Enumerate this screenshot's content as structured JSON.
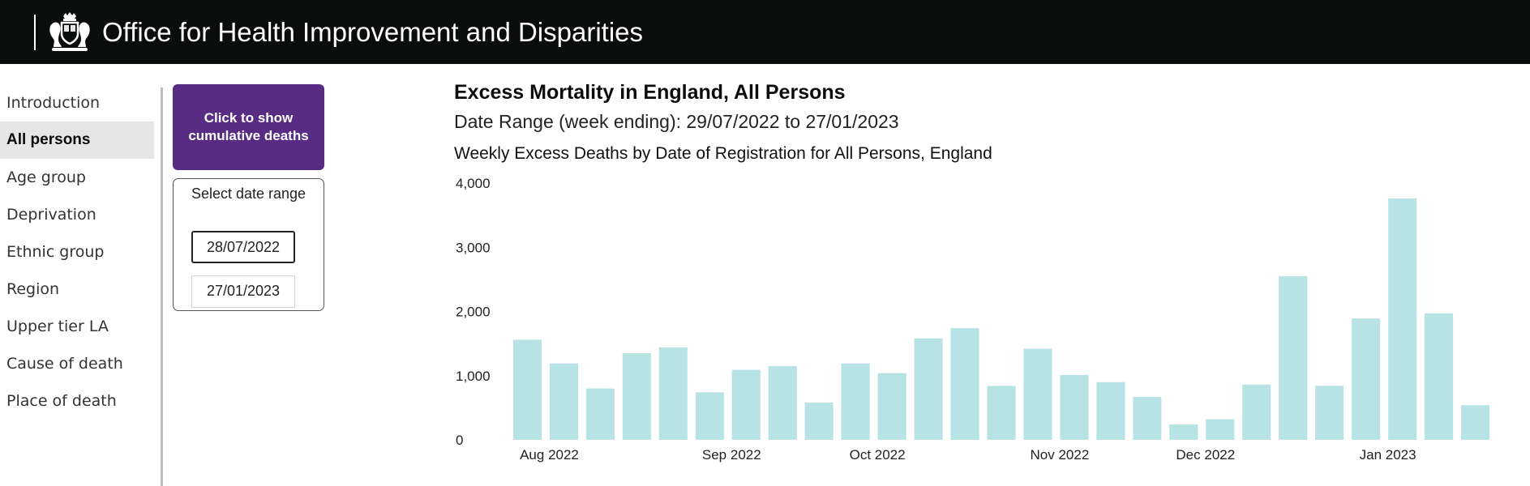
{
  "header": {
    "title": "Office for Health Improvement and Disparities",
    "logo_icon": "royal-coat-of-arms-icon"
  },
  "nav": {
    "items": [
      {
        "label": "Introduction",
        "active": false
      },
      {
        "label": "All persons",
        "active": true
      },
      {
        "label": "Age group",
        "active": false
      },
      {
        "label": "Deprivation",
        "active": false
      },
      {
        "label": "Ethnic group",
        "active": false
      },
      {
        "label": "Region",
        "active": false
      },
      {
        "label": "Upper tier LA",
        "active": false
      },
      {
        "label": "Cause of death",
        "active": false
      },
      {
        "label": "Place of death",
        "active": false
      }
    ]
  },
  "controls": {
    "cumulative_button": "Click to show cumulative deaths",
    "date_range_label": "Select date range",
    "start_date": "28/07/2022",
    "end_date": "27/01/2023"
  },
  "colors": {
    "header_bg": "#0b0c0c",
    "button_bg": "#582c83",
    "bar_fill": "#b8e3e5"
  },
  "chart_data": {
    "type": "bar",
    "title": "Excess Mortality in England, All Persons",
    "subtitle": "Date Range (week ending): 29/07/2022 to 27/01/2023",
    "chart_title": "Weekly Excess Deaths by Date of Registration for All Persons, England",
    "x": [
      "2022-07-29",
      "2022-08-05",
      "2022-08-12",
      "2022-08-19",
      "2022-08-26",
      "2022-09-02",
      "2022-09-09",
      "2022-09-16",
      "2022-09-23",
      "2022-09-30",
      "2022-10-07",
      "2022-10-14",
      "2022-10-21",
      "2022-10-28",
      "2022-11-04",
      "2022-11-11",
      "2022-11-18",
      "2022-11-25",
      "2022-12-02",
      "2022-12-09",
      "2022-12-16",
      "2022-12-23",
      "2022-12-30",
      "2023-01-06",
      "2023-01-13",
      "2023-01-20",
      "2023-01-27"
    ],
    "values": [
      1560,
      1190,
      800,
      1350,
      1440,
      740,
      1090,
      1150,
      580,
      1190,
      1040,
      1580,
      1740,
      840,
      1420,
      1010,
      900,
      670,
      240,
      320,
      860,
      2550,
      840,
      1890,
      3760,
      1970,
      540
    ],
    "x_tick_labels": [
      "Aug 2022",
      "Sep 2022",
      "Oct 2022",
      "Nov 2022",
      "Dec 2022",
      "Jan 2023"
    ],
    "x_tick_positions": [
      0,
      5,
      9,
      14,
      18,
      23
    ],
    "y_ticks": [
      "0",
      "1,000",
      "2,000",
      "3,000",
      "4,000"
    ],
    "y_tick_values": [
      0,
      1000,
      2000,
      3000,
      4000
    ],
    "ylim": [
      0,
      4000
    ],
    "xlabel": "",
    "ylabel": "",
    "grid": false
  }
}
